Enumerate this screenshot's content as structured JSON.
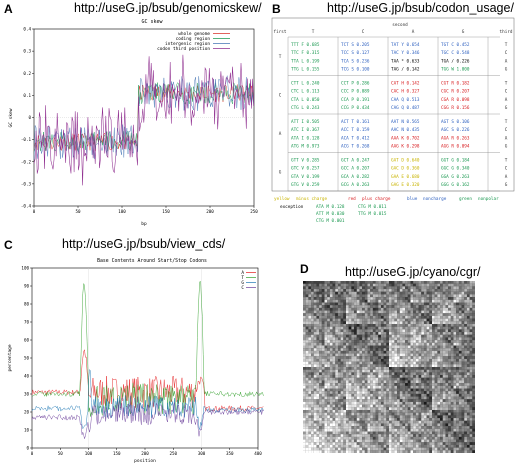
{
  "panels": {
    "A": {
      "letter": "A",
      "url": "http://useG.jp/bsub/genomicskew/",
      "chart_data": {
        "type": "line",
        "title": "GC skew",
        "xlabel": "bp",
        "ylabel": "GC skew",
        "xlim": [
          0,
          250
        ],
        "ylim": [
          -0.4,
          0.4
        ],
        "xticks": [
          "0",
          "50",
          "100",
          "150",
          "200",
          "250"
        ],
        "yticks": [
          "-0.4",
          "-0.3",
          "-0.2",
          "-0.1",
          "0",
          "0.1",
          "0.2",
          "0.3",
          "0.4"
        ],
        "legend_position": "top-right",
        "series": [
          {
            "name": "whole genome",
            "color": "#d73027"
          },
          {
            "name": "coding region",
            "color": "#1a9850"
          },
          {
            "name": "intergenic region",
            "color": "#4575b4"
          },
          {
            "name": "codon third position",
            "color": "#8e2c8e"
          }
        ]
      }
    },
    "B": {
      "letter": "B",
      "url": "http://useG.jp/bsub/codon_usage/",
      "second_label": "second",
      "first_label": "first",
      "third_label": "third",
      "col_heads": [
        "T",
        "C",
        "A",
        "G"
      ],
      "row_heads": [
        "T",
        "C",
        "A",
        "G"
      ],
      "third_letters": [
        "T",
        "C",
        "A",
        "G"
      ],
      "blocks": [
        [
          [
            "TTT F 0.685",
            "TTC F 0.315",
            "TTA L 0.199",
            "TTG L 0.155"
          ],
          [
            "TCT S 0.205",
            "TCC S 0.127",
            "TCA S 0.236",
            "TCG S 0.100"
          ],
          [
            "TAT Y 0.654",
            "TAC Y 0.346",
            "TAA * 0.633",
            "TAG / 0.142"
          ],
          [
            "TGT C 0.452",
            "TGC C 0.548",
            "TGA / 0.226",
            "TGG W 1.000"
          ]
        ],
        [
          [
            "CTT L 0.240",
            "CTC L 0.113",
            "CTA L 0.050",
            "CTG L 0.243"
          ],
          [
            "CCT P 0.286",
            "CCC P 0.089",
            "CCA P 0.191",
            "CCG P 0.434"
          ],
          [
            "CAT H 0.142",
            "CAC H 0.327",
            "CAA Q 0.513",
            "CAG Q 0.487"
          ],
          [
            "CGT R 0.182",
            "CGC R 0.207",
            "CGA R 0.098",
            "CGG R 0.156"
          ]
        ],
        [
          [
            "ATT I 0.505",
            "ATC I 0.367",
            "ATA I 0.128",
            "ATG M 0.973"
          ],
          [
            "ACT T 0.161",
            "ACC T 0.159",
            "ACA T 0.412",
            "ACG T 0.268"
          ],
          [
            "AAT N 0.565",
            "AAC N 0.435",
            "AAA K 0.702",
            "AAG K 0.298"
          ],
          [
            "AGT S 0.106",
            "AGC S 0.226",
            "AGA R 0.263",
            "AGG R 0.094"
          ]
        ],
        [
          [
            "GTT V 0.285",
            "GTC V 0.257",
            "GTA V 0.199",
            "GTG V 0.259"
          ],
          [
            "GCT A 0.247",
            "GCC A 0.207",
            "GCA A 0.282",
            "GCG A 0.263"
          ],
          [
            "GAT D 0.640",
            "GAC D 0.360",
            "GAA E 0.680",
            "GAG E 0.320"
          ],
          [
            "GGT G 0.184",
            "GGC G 0.340",
            "GGA G 0.263",
            "GGG G 0.162"
          ]
        ]
      ],
      "legend": {
        "yellow": "yellow",
        "acidic": "minus charge",
        "red": "red",
        "basic": "plus charge",
        "blue": "blue",
        "neutral": "noncharge",
        "green": "green",
        "nonpolar": "nonpolar"
      },
      "exception_label": "exception",
      "exceptions": [
        "ATA M 0.128",
        "CTG M 0.011",
        "ATT M 0.030",
        "TTG M 0.015",
        "CTG M 0.001"
      ]
    },
    "C": {
      "letter": "C",
      "url": "http://useG.jp/bsub/view_cds/",
      "chart_data": {
        "type": "line",
        "title": "Base Contents Around Start/Stop Codons",
        "xlabel": "position",
        "ylabel": "percentage",
        "xlim": [
          0,
          400
        ],
        "ylim": [
          0,
          100
        ],
        "xticks": [
          "0",
          "50",
          "100",
          "150",
          "200",
          "250",
          "300",
          "350",
          "400"
        ],
        "yticks": [
          "0",
          "10",
          "20",
          "30",
          "40",
          "50",
          "60",
          "70",
          "80",
          "90",
          "100"
        ],
        "legend_position": "top-right",
        "series": [
          {
            "name": "A",
            "color": "#e31a1c"
          },
          {
            "name": "T",
            "color": "#33a02c"
          },
          {
            "name": "G",
            "color": "#1f78b4"
          },
          {
            "name": "C",
            "color": "#6a3d9a"
          }
        ]
      }
    },
    "D": {
      "letter": "D",
      "url": "http://useG.jp/cyano/cgr/"
    }
  }
}
